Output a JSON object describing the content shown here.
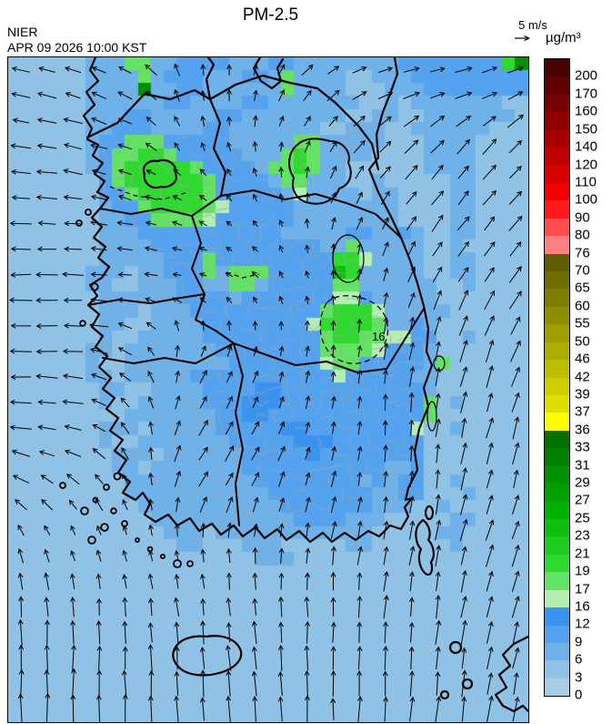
{
  "header": {
    "title": "PM-2.5",
    "agency": "NIER",
    "timestamp": "APR 09 2026 10:00 KST"
  },
  "wind_legend": {
    "label": "5 m/s"
  },
  "colorbar": {
    "unit": "µg/m³",
    "labels": [
      "200",
      "170",
      "160",
      "150",
      "140",
      "120",
      "110",
      "100",
      "90",
      "80",
      "76",
      "70",
      "65",
      "60",
      "55",
      "50",
      "46",
      "42",
      "39",
      "37",
      "36",
      "33",
      "31",
      "29",
      "27",
      "25",
      "23",
      "21",
      "19",
      "17",
      "16",
      "12",
      "9",
      "6",
      "3",
      "0"
    ],
    "colors": [
      "#4a0000",
      "#610000",
      "#780000",
      "#900000",
      "#a80000",
      "#c00000",
      "#d80000",
      "#f00000",
      "#ff1a1a",
      "#ff4d4d",
      "#ff8080",
      "#5e5e00",
      "#6e6e00",
      "#7e7e00",
      "#8e8e00",
      "#9e9e00",
      "#aeae00",
      "#bebe00",
      "#cece00",
      "#dede00",
      "#ffff00",
      "#007000",
      "#008000",
      "#009000",
      "#00a000",
      "#00b000",
      "#0cc00c",
      "#1ecb1e",
      "#2fd92f",
      "#63e263",
      "#b5eeb5",
      "#3b93f0",
      "#55a3ee",
      "#6fb1e9",
      "#90c2e5",
      "#a6cfe3"
    ]
  },
  "map": {
    "contour_label": "16"
  },
  "chart_data": {
    "type": "heatmap",
    "title": "PM-2.5",
    "units": "µg/m³",
    "agency": "NIER",
    "valid_time": "APR 09 2026 10:00 KST",
    "levels": [
      0,
      3,
      6,
      9,
      12,
      16,
      17,
      19,
      21,
      23,
      25,
      27,
      29,
      31,
      33,
      36,
      37,
      39,
      42,
      46,
      50,
      55,
      60,
      65,
      70,
      76,
      80,
      90,
      100,
      110,
      120,
      140,
      150,
      160,
      170,
      200
    ],
    "palette": {
      "a": "#a6cfe3",
      "b": "#90c2e5",
      "c": "#6fb1e9",
      "d": "#55a3ee",
      "e": "#3b93f0",
      "f": "#b5eeb5",
      "g": "#63e263",
      "h": "#2fd92f",
      "i": "#1ecb1e",
      "j": "#0cc00c",
      "m": "#009000"
    },
    "palette_bins": {
      "a": "0-3",
      "b": "3-6",
      "c": "6-9",
      "d": "9-12",
      "e": "12-16",
      "f": "16-17",
      "g": "17-19",
      "h": "19-21",
      "i": "21-23",
      "j": "23-25",
      "m": "29-31"
    },
    "grid_cols": 40,
    "grid_rows": 51,
    "grid": [
      "bbbbbbcccggccddddcccddccccccccddddddddhm",
      "bbbbbbccccgcdddcccddcgccccbbcccddddddddd",
      "bbbbbbccccmccddccccccgccccbbbcccdddddddd",
      "bbbbbbccccccddccccddcccccccbbcbcccccccbb",
      "bbbbbbcccddcccccddccccccccbbccbbcccccccb",
      "bbbbbbccdddccccddcccccccbbcccbbccccccbbb",
      "bbbbbbcddgggdddddcccccggcccccbbbccccbbbb",
      "bbbbbbcdgghhgdddddcccghgccccbbbbccccbbbb",
      "bbbbbbcdghhhhhgddddcgghgccbbbbbbccccbbbb",
      "bbbbbbbdghhhhhhgddddcggcccbbcbbbbbccbbbb",
      "bbbbbbbddghhhhhgdddddcfccccbccbbbbccbbbb",
      "bbbbbbbcddghhhhgfdddddccccccccbbbbccbbbb",
      "bbbbbbbccddggggfddddddccccccccbbbbccbbbb",
      "bbbbbbbcccdddddddddddcccccddccdcbbccbbbb",
      "bbbbbbbccccdddddddddddddccgcccccbbcbbbbb",
      "bbbbbbbcccccdddgdddddddddhhfccccbbccbbbb",
      "bbbbbbcccbccdddgcgggdddddjhcccccbbccbbbb",
      "bbbbbbccbbcccddccggcdddddggccccccbbcbbbb",
      "bbbbbbbccccccddddcdddddddffdcccccbbbbbbb",
      "bbbbbbbcccbcccddddddddddghhhfcccccbbbbbb",
      "bbbbbbbccbbccccddddddddfhhhhgccdcbbbbbbb",
      "bbbbbbbcbbcccccdddddddddghhggffddbbcbbbb",
      "bbbbbbccbcccccccddddddddggggfdddcbbbbbbb",
      "bbbbbbcbbccccccccdddddddfggdddddcgbbbbbb",
      "bbbbbbccbcccccdddddddddddfdddddccbbbbbbb",
      "bbbbbbbccbbccccddddeedddddddddddcbbbbbbb",
      "bbbbbbbcbbcccccdddeeedddddddddddgbcbbbbb",
      "bbbbbbbbbcccccccddeeddddddddddddgbbbbbbb",
      "bbbbbbbcccbcccccdddddeeddddddddfbbcbbbbb",
      "bbbbbbbcbbcccccccdddddeeedddddddbbbbbbbb",
      "bbbbbbbbcccbccccccdddddeddddddddbbbbbbbb",
      "bbbbbbbbccbcccccccdddddddddddccdbbbbbbbb",
      "bbbbbbbbbccccccccccddddddddcdcddbbcbbbbb",
      "bbbbbbbbbcccccccccccddddddddccddbbbcbbbb",
      "bbbbbbbbbbcccccccccccdddddddcccbbcbbbbbb",
      "bbbbbbbbbbbcccccccccccddddcccbbbbbccbbbb",
      "bbbbbbbbbbbbcccbccccccccccccbbbbbccbbbbb",
      "bbbbbbbbbbbbbccbbbcccbbbbbccbbbbbbcbbbbb",
      "bbbbbbbbbbbbbbbbbbbcccbbbbbbbbbbbbbbbbbb",
      "bbbbbbbbbbbbbbbbbbbbbbbbbbbbbbbbbbbbbbbb",
      "bbbbbbbbbbbbbbbbbbbbbbbbbbbbbbbbbbbbbbbb",
      "bbbbbbbbbbbbbbbbbbbbbbbbbbbbbbbbbbbbbbbb",
      "bbbbbbbbbbbbbbbbbbbbbbbbbbbbbbbbbbbbbbbb",
      "bbbbbbbbbbbbbbbbbbbbbbbbbbbbbbbbbbbbbbbb",
      "bbbbbbbbbbbbbbbbbbbbbbbbbbbbbbbbbbbbbbbb",
      "bbbbbbbbbbbbbbbbbbbbbbbbbbbbbbbbbbbbbbbb",
      "bbbbbbbbbbbbbbbbbbbbbbbbbbbbbbbbbbbbbbbb",
      "bbbbbbbbbbbbbbbbbbbbbbbbbbbbbbbbbbbbbbbb",
      "bbbbbbbbbbbbbbbbbbbbbbbbbbbbbbbbbbbbbbbb",
      "bbbbbbbbbbbbbbbbbbbbbbbbbbbbbbbbbbbbbbbb",
      "bbbbbbbbbbbbbbbbbbbbbbbbbbbbbbbbbbbbbbbb"
    ],
    "wind_field": {
      "cols": 10,
      "rows": 13,
      "note": "each entry = [direction_deg_ccw_from_east, length_px]",
      "vectors": [
        [
          [
            165,
            18
          ],
          [
            160,
            18
          ],
          [
            150,
            16
          ],
          [
            100,
            12
          ],
          [
            85,
            12
          ],
          [
            50,
            14
          ],
          [
            30,
            16
          ],
          [
            15,
            16
          ],
          [
            15,
            18
          ],
          [
            20,
            18
          ]
        ],
        [
          [
            170,
            20
          ],
          [
            165,
            18
          ],
          [
            155,
            14
          ],
          [
            105,
            10
          ],
          [
            95,
            10
          ],
          [
            70,
            12
          ],
          [
            50,
            16
          ],
          [
            45,
            18
          ],
          [
            45,
            18
          ],
          [
            45,
            20
          ]
        ],
        [
          [
            175,
            20
          ],
          [
            170,
            18
          ],
          [
            160,
            12
          ],
          [
            150,
            10
          ],
          [
            120,
            8
          ],
          [
            90,
            10
          ],
          [
            60,
            14
          ],
          [
            50,
            18
          ],
          [
            50,
            20
          ],
          [
            50,
            20
          ]
        ],
        [
          [
            180,
            22
          ],
          [
            175,
            20
          ],
          [
            170,
            14
          ],
          [
            160,
            8
          ],
          [
            140,
            8
          ],
          [
            105,
            8
          ],
          [
            75,
            12
          ],
          [
            60,
            16
          ],
          [
            55,
            20
          ],
          [
            50,
            20
          ]
        ],
        [
          [
            180,
            22
          ],
          [
            178,
            20
          ],
          [
            175,
            14
          ],
          [
            168,
            8
          ],
          [
            150,
            8
          ],
          [
            115,
            8
          ],
          [
            90,
            10
          ],
          [
            70,
            16
          ],
          [
            62,
            20
          ],
          [
            55,
            20
          ]
        ],
        [
          [
            180,
            24
          ],
          [
            176,
            20
          ],
          [
            150,
            12
          ],
          [
            70,
            12
          ],
          [
            75,
            10
          ],
          [
            80,
            10
          ],
          [
            85,
            12
          ],
          [
            80,
            18
          ],
          [
            75,
            22
          ],
          [
            68,
            22
          ]
        ],
        [
          [
            178,
            22
          ],
          [
            172,
            20
          ],
          [
            130,
            12
          ],
          [
            60,
            16
          ],
          [
            65,
            14
          ],
          [
            75,
            12
          ],
          [
            85,
            12
          ],
          [
            85,
            18
          ],
          [
            78,
            22
          ],
          [
            72,
            22
          ]
        ],
        [
          [
            170,
            20
          ],
          [
            160,
            18
          ],
          [
            110,
            12
          ],
          [
            58,
            18
          ],
          [
            60,
            16
          ],
          [
            70,
            14
          ],
          [
            80,
            14
          ],
          [
            88,
            18
          ],
          [
            80,
            22
          ],
          [
            75,
            22
          ]
        ],
        [
          [
            145,
            16
          ],
          [
            130,
            14
          ],
          [
            110,
            12
          ],
          [
            60,
            18
          ],
          [
            62,
            16
          ],
          [
            70,
            16
          ],
          [
            78,
            16
          ],
          [
            85,
            18
          ],
          [
            80,
            22
          ],
          [
            76,
            22
          ]
        ],
        [
          [
            112,
            12
          ],
          [
            110,
            10
          ],
          [
            108,
            10
          ],
          [
            100,
            12
          ],
          [
            90,
            14
          ],
          [
            85,
            16
          ],
          [
            80,
            18
          ],
          [
            78,
            20
          ],
          [
            76,
            22
          ],
          [
            72,
            22
          ]
        ],
        [
          [
            95,
            20
          ],
          [
            95,
            18
          ],
          [
            96,
            16
          ],
          [
            97,
            16
          ],
          [
            95,
            18
          ],
          [
            92,
            18
          ],
          [
            88,
            20
          ],
          [
            84,
            22
          ],
          [
            80,
            22
          ],
          [
            76,
            22
          ]
        ],
        [
          [
            90,
            28
          ],
          [
            90,
            26
          ],
          [
            92,
            26
          ],
          [
            94,
            24
          ],
          [
            94,
            24
          ],
          [
            92,
            24
          ],
          [
            88,
            24
          ],
          [
            85,
            24
          ],
          [
            82,
            24
          ],
          [
            78,
            24
          ]
        ],
        [
          [
            90,
            30
          ],
          [
            90,
            30
          ],
          [
            92,
            28
          ],
          [
            93,
            28
          ],
          [
            93,
            26
          ],
          [
            91,
            26
          ],
          [
            89,
            26
          ],
          [
            86,
            26
          ],
          [
            83,
            26
          ],
          [
            79,
            26
          ]
        ]
      ]
    }
  }
}
